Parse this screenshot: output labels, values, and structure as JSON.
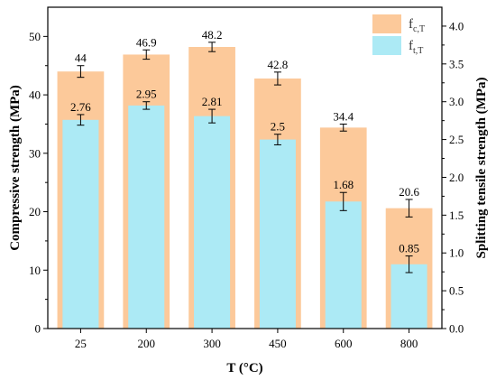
{
  "chart_data": {
    "type": "bar",
    "xlabel": "T (°C)",
    "ylabel_left": "Compressive strength (MPa)",
    "ylabel_right": "Splitting tensile strength (MPa)",
    "categories": [
      "25",
      "200",
      "300",
      "450",
      "600",
      "800"
    ],
    "ylim_left": [
      0,
      55
    ],
    "yticks_left": [
      0,
      10,
      20,
      30,
      40,
      50
    ],
    "ylim_right": [
      0,
      4.25
    ],
    "yticks_right": [
      "0.0",
      "0.5",
      "1.0",
      "1.5",
      "2.0",
      "2.5",
      "3.0",
      "3.5",
      "4.0"
    ],
    "series": [
      {
        "name": "f",
        "subscript": "c,T",
        "axis": "left",
        "color": "#FCC99A",
        "values": [
          44,
          46.9,
          48.2,
          42.8,
          34.4,
          20.6
        ],
        "labels": [
          "44",
          "46.9",
          "48.2",
          "42.8",
          "34.4",
          "20.6"
        ],
        "errors": [
          1.0,
          0.8,
          0.8,
          1.1,
          0.6,
          1.5
        ]
      },
      {
        "name": "f",
        "subscript": "t,T",
        "axis": "right",
        "color": "#ACEAF5",
        "values": [
          2.76,
          2.95,
          2.81,
          2.5,
          1.68,
          0.85
        ],
        "labels": [
          "2.76",
          "2.95",
          "2.81",
          "2.5",
          "1.68",
          "0.85"
        ],
        "errors": [
          0.07,
          0.05,
          0.09,
          0.07,
          0.12,
          0.11
        ]
      }
    ],
    "legend_position": "top-right",
    "grid": false
  }
}
